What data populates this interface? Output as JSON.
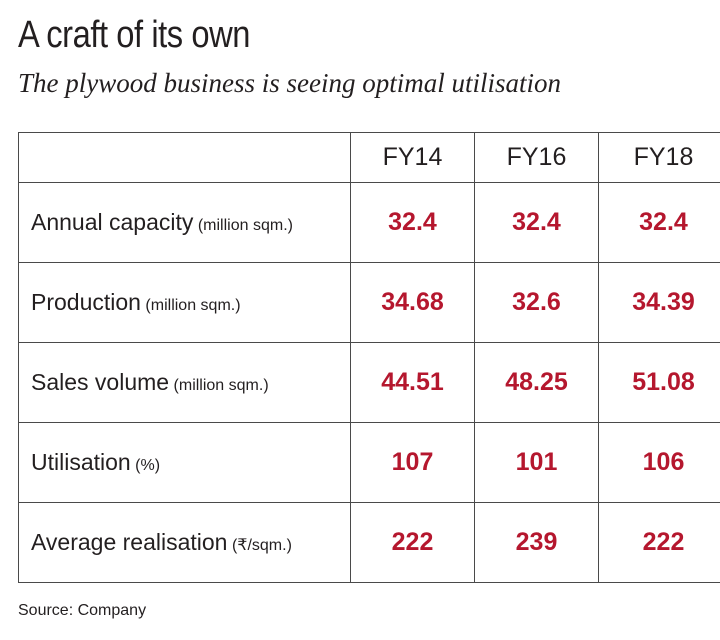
{
  "title": "A craft of its own",
  "subtitle": "The plywood business is seeing optimal utilisation",
  "source": "Source: Company",
  "colors": {
    "value": "#b5172e",
    "text": "#231f20",
    "border": "#4a4a4a"
  },
  "chart_data": {
    "type": "table",
    "title": "A craft of its own",
    "subtitle": "The plywood business is seeing optimal utilisation",
    "columns": [
      "FY14",
      "FY16",
      "FY18"
    ],
    "rows": [
      {
        "metric": "Annual capacity",
        "unit": "(million sqm.)",
        "values": [
          "32.4",
          "32.4",
          "32.4"
        ]
      },
      {
        "metric": "Production",
        "unit": "(million sqm.)",
        "values": [
          "34.68",
          "32.6",
          "34.39"
        ]
      },
      {
        "metric": "Sales volume",
        "unit": "(million sqm.)",
        "values": [
          "44.51",
          "48.25",
          "51.08"
        ]
      },
      {
        "metric": "Utilisation",
        "unit": "(%)",
        "values": [
          "107",
          "101",
          "106"
        ]
      },
      {
        "metric": "Average realisation",
        "unit": "(₹/sqm.)",
        "values": [
          "222",
          "239",
          "222"
        ]
      }
    ]
  }
}
